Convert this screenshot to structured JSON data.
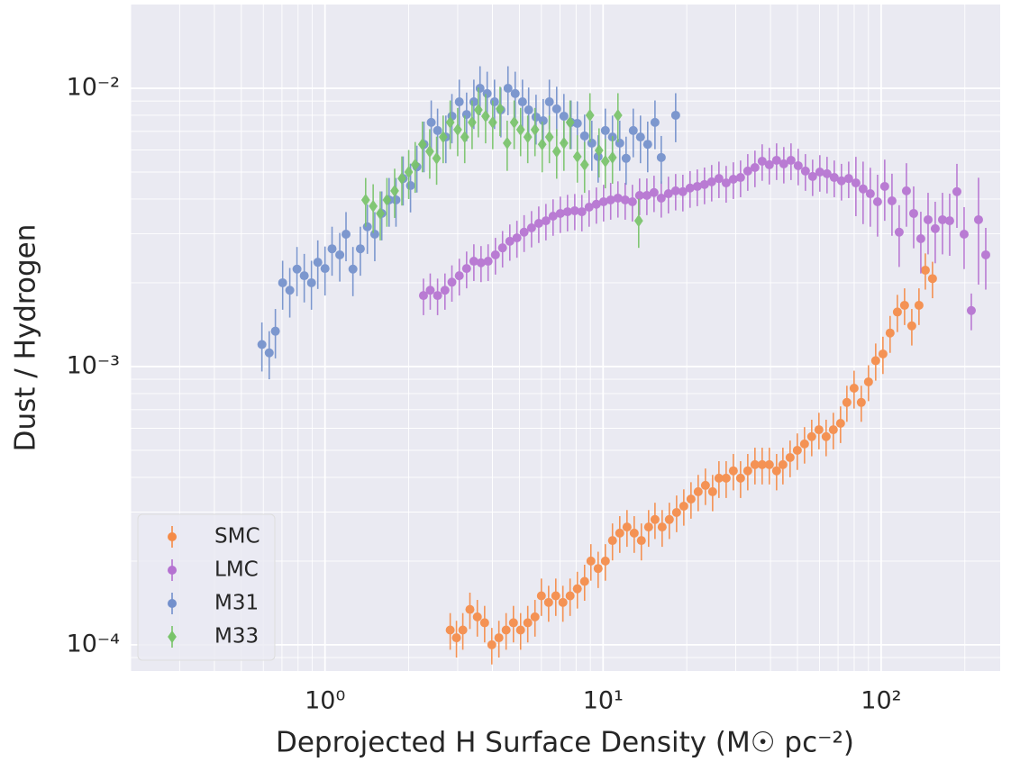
{
  "chart_data": {
    "type": "errorbar",
    "xlabel": "Deprojected H Surface Density (M☉ pc⁻²)",
    "ylabel": "Dust / Hydrogen",
    "xscale": "log",
    "yscale": "log",
    "xlim": [
      0.2,
      268
    ],
    "ylim": [
      8.05e-05,
      0.02
    ],
    "xticks": [
      {
        "value": 1,
        "label": "10⁰"
      },
      {
        "value": 10,
        "label": "10¹"
      },
      {
        "value": 100,
        "label": "10²"
      }
    ],
    "yticks": [
      {
        "value": 0.0001,
        "label": "10⁻⁴"
      },
      {
        "value": 0.001,
        "label": "10⁻³"
      },
      {
        "value": 0.01,
        "label": "10⁻²"
      }
    ],
    "x_minor_ticks": [
      0.2,
      0.3,
      0.4,
      0.5,
      0.6,
      0.7,
      0.8,
      0.9,
      2,
      3,
      4,
      5,
      6,
      7,
      8,
      9,
      20,
      30,
      40,
      50,
      60,
      70,
      80,
      90,
      200
    ],
    "y_minor_ticks": [
      9e-05,
      0.0002,
      0.0003,
      0.0004,
      0.0005,
      0.0006,
      0.0007,
      0.0008,
      0.0009,
      0.002,
      0.003,
      0.004,
      0.005,
      0.006,
      0.007,
      0.008,
      0.009
    ],
    "grid": true,
    "legend": "lower left",
    "series": [
      {
        "name": "SMC",
        "color": "#f58b47",
        "marker": "o",
        "x": [
          2.82,
          2.97,
          3.13,
          3.32,
          3.53,
          3.75,
          3.98,
          4.22,
          4.48,
          4.76,
          5.05,
          5.36,
          5.69,
          6.0,
          6.37,
          6.76,
          7.17,
          7.61,
          8.08,
          8.58,
          9.04,
          9.6,
          10.19,
          10.81,
          11.48,
          12.19,
          12.94,
          13.73,
          14.58,
          15.37,
          16.31,
          17.31,
          18.38,
          19.51,
          20.71,
          21.98,
          23.34,
          24.77,
          26.1,
          27.71,
          29.41,
          31.22,
          33.14,
          35.17,
          37.34,
          39.63,
          42.07,
          44.33,
          47.05,
          49.95,
          53.02,
          56.28,
          59.74,
          63.41,
          67.31,
          71.45,
          75.3,
          79.92,
          84.84,
          90.06,
          95.59,
          101.5,
          107.7,
          114.4,
          121.4,
          128.9,
          136.8,
          144.2,
          153.0
        ],
        "values": [
          0.000113,
          0.000106,
          0.000113,
          0.000134,
          0.000126,
          0.00012,
          0.0001,
          0.000106,
          0.000113,
          0.00012,
          0.000113,
          0.00012,
          0.000126,
          0.00015,
          0.000142,
          0.00015,
          0.000142,
          0.00015,
          0.000159,
          0.000169,
          0.0002,
          0.000188,
          0.0002,
          0.000237,
          0.000252,
          0.000265,
          0.000252,
          0.000237,
          0.000265,
          0.000282,
          0.000265,
          0.000282,
          0.000299,
          0.000315,
          0.000334,
          0.000355,
          0.000374,
          0.000355,
          0.000397,
          0.000397,
          0.000422,
          0.000397,
          0.000422,
          0.000444,
          0.000444,
          0.000444,
          0.000422,
          0.000444,
          0.000471,
          0.0005,
          0.000527,
          0.00056,
          0.000593,
          0.00056,
          0.000593,
          0.000625,
          0.000743,
          0.000836,
          0.000743,
          0.000881,
          0.00105,
          0.00111,
          0.00132,
          0.00157,
          0.00166,
          0.0014,
          0.00166,
          0.00222,
          0.00207
        ],
        "errors": [
          1.7e-05,
          1.6e-05,
          1.7e-05,
          2e-05,
          1.9e-05,
          1.8e-05,
          1.5e-05,
          1.6e-05,
          1.7e-05,
          1.8e-05,
          1.7e-05,
          1.8e-05,
          1.9e-05,
          2.3e-05,
          2.1e-05,
          2.3e-05,
          2.1e-05,
          2.3e-05,
          2.4e-05,
          2.5e-05,
          3e-05,
          2.8e-05,
          3e-05,
          3.6e-05,
          3.8e-05,
          4e-05,
          3.8e-05,
          3.6e-05,
          4e-05,
          4.2e-05,
          4e-05,
          4.2e-05,
          4.5e-05,
          4.7e-05,
          5e-05,
          5.3e-05,
          5.6e-05,
          5.3e-05,
          6e-05,
          6e-05,
          6.3e-05,
          6e-05,
          6.3e-05,
          6.7e-05,
          6.7e-05,
          6.7e-05,
          6.3e-05,
          6.7e-05,
          7.1e-05,
          7.5e-05,
          7.9e-05,
          8.4e-05,
          8.9e-05,
          8.4e-05,
          8.9e-05,
          9.4e-05,
          0.00011,
          0.00013,
          0.00011,
          0.00013,
          0.00016,
          0.00017,
          0.0002,
          0.00024,
          0.00025,
          0.00021,
          0.00025,
          0.00033,
          0.00031
        ]
      },
      {
        "name": "LMC",
        "color": "#b572d1",
        "marker": "o",
        "x": [
          2.26,
          2.39,
          2.54,
          2.7,
          2.86,
          3.04,
          3.23,
          3.43,
          3.64,
          3.86,
          4.1,
          4.35,
          4.62,
          4.9,
          5.2,
          5.53,
          5.87,
          6.23,
          6.61,
          7.02,
          7.45,
          7.91,
          8.39,
          8.91,
          9.46,
          10.04,
          10.65,
          11.31,
          12.01,
          12.75,
          13.53,
          14.37,
          15.25,
          16.19,
          17.18,
          18.24,
          19.36,
          20.55,
          21.82,
          23.16,
          24.58,
          26.1,
          27.71,
          29.41,
          31.22,
          33.14,
          35.17,
          37.34,
          39.63,
          42.07,
          44.66,
          47.41,
          50.32,
          53.42,
          56.7,
          60.19,
          63.89,
          67.83,
          72.0,
          76.43,
          81.13,
          86.12,
          91.43,
          97.07,
          103.0,
          109.4,
          116.1,
          123.3,
          130.9,
          138.9,
          147.5,
          156.5,
          166.2,
          176.4,
          187.3,
          198.8,
          211.0,
          224.0,
          237.8
        ],
        "values": [
          0.0018,
          0.00188,
          0.0018,
          0.00188,
          0.00201,
          0.00212,
          0.00225,
          0.00239,
          0.00236,
          0.00239,
          0.00252,
          0.00267,
          0.00282,
          0.0029,
          0.00304,
          0.00315,
          0.00327,
          0.00334,
          0.00347,
          0.00355,
          0.0036,
          0.00363,
          0.0036,
          0.00374,
          0.00383,
          0.00391,
          0.00397,
          0.00403,
          0.00397,
          0.00391,
          0.00412,
          0.00412,
          0.00422,
          0.00403,
          0.00418,
          0.00428,
          0.00425,
          0.00438,
          0.00444,
          0.00451,
          0.00461,
          0.00474,
          0.00457,
          0.00471,
          0.00478,
          0.00504,
          0.00519,
          0.00547,
          0.00531,
          0.00551,
          0.00535,
          0.00551,
          0.00527,
          0.00504,
          0.00482,
          0.005,
          0.00493,
          0.00478,
          0.00465,
          0.00474,
          0.00457,
          0.00435,
          0.00418,
          0.00391,
          0.00444,
          0.00394,
          0.00304,
          0.00428,
          0.00355,
          0.00288,
          0.00337,
          0.00313,
          0.00337,
          0.00334,
          0.00425,
          0.00299,
          0.00159,
          0.00337,
          0.00252
        ],
        "errors": [
          0.00027,
          0.00028,
          0.00027,
          0.00028,
          0.0003,
          0.00032,
          0.00034,
          0.00036,
          0.00035,
          0.00036,
          0.00038,
          0.0004,
          0.00042,
          0.00044,
          0.00046,
          0.00047,
          0.00049,
          0.0005,
          0.00052,
          0.00053,
          0.00054,
          0.00054,
          0.00054,
          0.00056,
          0.00057,
          0.00059,
          0.0006,
          0.0006,
          0.0006,
          0.00059,
          0.00062,
          0.00062,
          0.00063,
          0.0006,
          0.00063,
          0.00064,
          0.00064,
          0.00066,
          0.00067,
          0.00068,
          0.00069,
          0.00071,
          0.00069,
          0.00071,
          0.00072,
          0.00076,
          0.00078,
          0.00082,
          0.0008,
          0.00083,
          0.0008,
          0.00083,
          0.00079,
          0.00076,
          0.00072,
          0.00075,
          0.00074,
          0.00072,
          0.0007,
          0.00071,
          0.0011,
          0.0011,
          0.001,
          0.00098,
          0.0011,
          0.00099,
          0.00076,
          0.0011,
          0.00089,
          0.00072,
          0.00084,
          0.00078,
          0.00084,
          0.00084,
          0.0011,
          0.00075,
          0.00024,
          0.0014,
          0.00063
        ]
      },
      {
        "name": "M31",
        "color": "#7390cc",
        "marker": "o",
        "x": [
          0.593,
          0.63,
          0.663,
          0.704,
          0.747,
          0.793,
          0.842,
          0.894,
          0.942,
          1.0,
          1.06,
          1.13,
          1.19,
          1.26,
          1.34,
          1.42,
          1.51,
          1.6,
          1.7,
          1.8,
          1.91,
          2.03,
          2.14,
          2.27,
          2.41,
          2.54,
          2.72,
          2.86,
          3.04,
          3.23,
          3.43,
          3.61,
          3.83,
          4.07,
          4.29,
          4.55,
          4.83,
          5.13,
          5.4,
          5.74,
          6.09,
          6.41,
          6.81,
          7.23,
          7.67,
          8.08,
          8.58,
          9.11,
          9.6,
          10.19,
          10.81,
          11.48,
          12.1,
          12.84,
          13.63,
          14.47,
          15.37,
          16.19,
          18.24
        ],
        "values": [
          0.0012,
          0.00112,
          0.00134,
          0.002,
          0.00188,
          0.00224,
          0.00212,
          0.002,
          0.00237,
          0.00225,
          0.00265,
          0.00252,
          0.00299,
          0.00224,
          0.00265,
          0.00318,
          0.00299,
          0.00355,
          0.00397,
          0.00397,
          0.00474,
          0.00447,
          0.00522,
          0.00629,
          0.00754,
          0.00705,
          0.00668,
          0.00794,
          0.00894,
          0.00805,
          0.00894,
          0.01,
          0.00957,
          0.00894,
          0.00836,
          0.01,
          0.00957,
          0.00894,
          0.00836,
          0.00788,
          0.00765,
          0.00894,
          0.00843,
          0.00794,
          0.00754,
          0.00748,
          0.00674,
          0.00635,
          0.00568,
          0.00705,
          0.00668,
          0.00635,
          0.0056,
          0.00705,
          0.00668,
          0.00629,
          0.00754,
          0.00564,
          0.008
        ],
        "errors": [
          0.00024,
          0.00022,
          0.00027,
          0.0004,
          0.00038,
          0.00045,
          0.00042,
          0.0004,
          0.00047,
          0.00045,
          0.00053,
          0.0005,
          0.0006,
          0.00045,
          0.00053,
          0.00064,
          0.0006,
          0.00071,
          0.00079,
          0.00079,
          0.00095,
          0.00089,
          0.001,
          0.0013,
          0.0015,
          0.0014,
          0.0013,
          0.0016,
          0.0018,
          0.0016,
          0.0018,
          0.002,
          0.0019,
          0.0018,
          0.0017,
          0.002,
          0.0019,
          0.0018,
          0.0017,
          0.0016,
          0.0015,
          0.0018,
          0.0017,
          0.0016,
          0.0015,
          0.0015,
          0.0013,
          0.0013,
          0.0011,
          0.0014,
          0.0013,
          0.0013,
          0.0011,
          0.0014,
          0.0013,
          0.0013,
          0.0015,
          0.0011,
          0.0016
        ]
      },
      {
        "name": "M33",
        "color": "#79c46a",
        "marker": "D",
        "x": [
          1.4,
          1.49,
          1.58,
          1.67,
          1.78,
          1.89,
          2.0,
          2.11,
          2.24,
          2.38,
          2.52,
          2.66,
          2.82,
          3.0,
          3.18,
          3.38,
          3.56,
          3.78,
          4.01,
          4.26,
          4.52,
          4.79,
          5.05,
          5.36,
          5.69,
          6.04,
          6.41,
          6.81,
          7.23,
          7.61,
          8.08,
          8.58,
          8.97,
          9.67,
          10.19,
          10.81,
          11.31,
          13.43
        ],
        "values": [
          0.00397,
          0.00377,
          0.00355,
          0.00397,
          0.00428,
          0.00474,
          0.005,
          0.00531,
          0.00629,
          0.00593,
          0.0056,
          0.00668,
          0.00754,
          0.0071,
          0.00668,
          0.00754,
          0.00836,
          0.00794,
          0.00754,
          0.00843,
          0.00635,
          0.00754,
          0.0071,
          0.00668,
          0.0071,
          0.00629,
          0.00668,
          0.00593,
          0.00635,
          0.00754,
          0.00568,
          0.00531,
          0.008,
          0.00598,
          0.00547,
          0.00564,
          0.008,
          0.00334
        ],
        "errors": [
          0.00079,
          0.00075,
          0.00071,
          0.00079,
          0.00086,
          0.00095,
          0.001,
          0.0011,
          0.0013,
          0.0012,
          0.0011,
          0.0013,
          0.0015,
          0.0014,
          0.0013,
          0.0015,
          0.0017,
          0.0016,
          0.0015,
          0.0017,
          0.0013,
          0.0015,
          0.0014,
          0.0013,
          0.0014,
          0.0013,
          0.0013,
          0.0012,
          0.0013,
          0.0015,
          0.0011,
          0.0011,
          0.0016,
          0.0012,
          0.0011,
          0.0011,
          0.0016,
          0.00067
        ]
      }
    ]
  }
}
